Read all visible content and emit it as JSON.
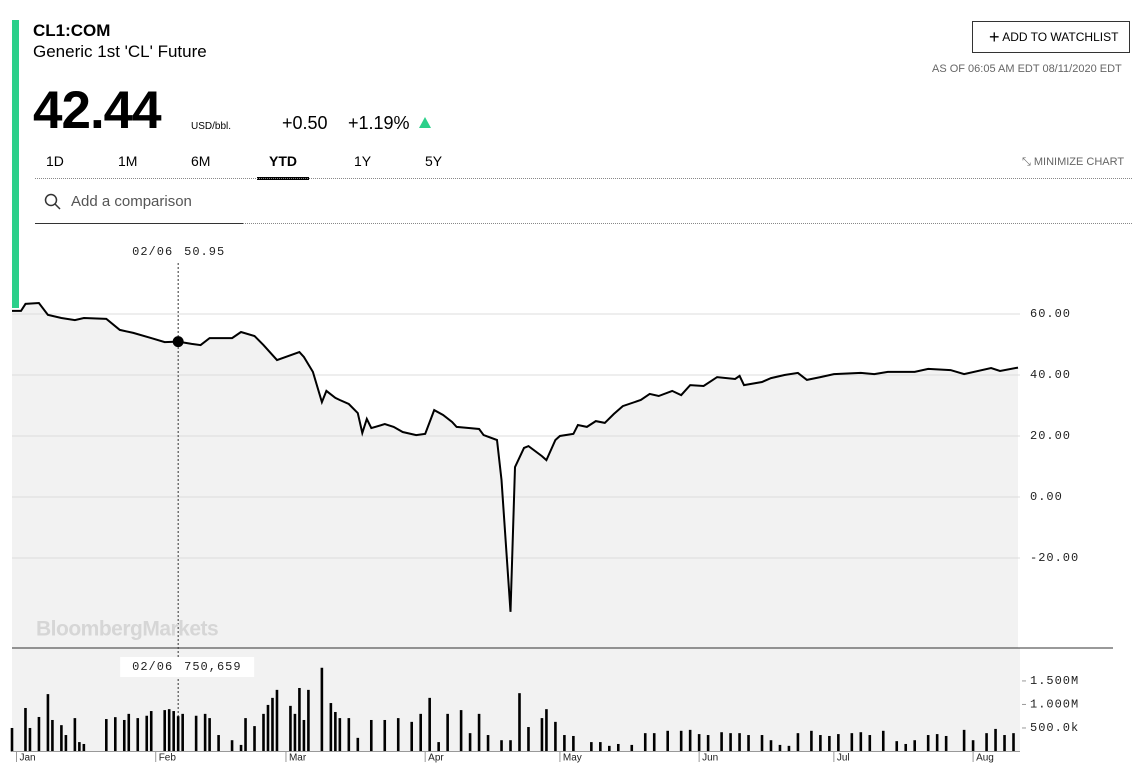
{
  "header": {
    "symbol": "CL1:COM",
    "name": "Generic 1st 'CL' Future",
    "price": "42.44",
    "unit": "USD/bbl.",
    "change": "+0.50",
    "change_pct": "+1.19%",
    "watchlist": "ADD TO WATCHLIST",
    "as_of": "AS OF 06:05 AM EDT 08/11/2020 EDT",
    "tabs": [
      "1D",
      "1M",
      "6M",
      "YTD",
      "1Y",
      "5Y"
    ],
    "active_tab": 3,
    "minimize": "MINIMIZE CHART",
    "comparison": "Add a comparison",
    "watermark": "BloombergMarkets"
  },
  "chart_data": [
    {
      "type": "line",
      "color": "#000000",
      "area_color": "#f2f2f2",
      "grid": true,
      "x": [
        0,
        2,
        3,
        6,
        8,
        11,
        14,
        16,
        21,
        24,
        27,
        31,
        34,
        37,
        40,
        42,
        44,
        49,
        51,
        54,
        56,
        59,
        64,
        65,
        67,
        69,
        70,
        72,
        73,
        75,
        77,
        78,
        79,
        80,
        83,
        85,
        87,
        90,
        92,
        94,
        96,
        98,
        99,
        102,
        104,
        105,
        108,
        109,
        111,
        112,
        114,
        115,
        118,
        119,
        121,
        122,
        125,
        126,
        128,
        130,
        132,
        134,
        136,
        140,
        142,
        144,
        147,
        149,
        151,
        154,
        157,
        161,
        162,
        163,
        167,
        169,
        172,
        175,
        177,
        180,
        183,
        189,
        192,
        195,
        201,
        204,
        209,
        212,
        218,
        220,
        224
      ],
      "values": [
        61.0,
        61.0,
        63.3,
        63.6,
        59.7,
        58.7,
        58.0,
        58.7,
        58.4,
        54.8,
        53.8,
        52.1,
        50.8,
        50.95,
        50.2,
        49.8,
        52.1,
        52.1,
        54.1,
        52.8,
        49.8,
        44.9,
        47.5,
        45.9,
        41.0,
        31.1,
        34.8,
        32.5,
        31.8,
        30.5,
        27.5,
        21.0,
        25.6,
        22.6,
        23.9,
        23.0,
        21.3,
        20.3,
        20.7,
        28.5,
        26.9,
        24.6,
        23.0,
        22.6,
        22.3,
        20.3,
        18.7,
        5.6,
        -37.63,
        9.8,
        16.1,
        16.7,
        13.4,
        12.1,
        18.7,
        20.0,
        20.7,
        23.6,
        23.0,
        24.9,
        24.3,
        27.2,
        29.8,
        31.8,
        33.8,
        33.1,
        34.8,
        33.4,
        36.7,
        36.4,
        39.3,
        38.7,
        39.7,
        36.7,
        37.7,
        39.0,
        40.0,
        40.7,
        38.4,
        39.3,
        40.3,
        40.7,
        40.3,
        41.0,
        41.0,
        42.0,
        41.6,
        40.3,
        42.3,
        41.3,
        42.44
      ],
      "xlim": [
        0,
        224
      ],
      "ylim": [
        -50,
        88
      ],
      "yticks": [
        {
          "value": 60,
          "label": "60.00"
        },
        {
          "value": 40,
          "label": "40.00"
        },
        {
          "value": 20,
          "label": "20.00"
        },
        {
          "value": 0,
          "label": "0.00"
        },
        {
          "value": -20,
          "label": "-20.00"
        }
      ],
      "crosshair": {
        "x": 37,
        "x_label": "02/06",
        "price": 50.95
      }
    },
    {
      "type": "bar",
      "color": "#000000",
      "x": [
        0,
        3,
        4,
        6,
        8,
        9,
        11,
        12,
        14,
        15,
        16,
        21,
        23,
        25,
        26,
        28,
        30,
        31,
        34,
        35,
        36,
        37,
        38,
        41,
        43,
        44,
        46,
        49,
        51,
        52,
        54,
        56,
        57,
        58,
        59,
        62,
        63,
        64,
        65,
        66,
        69,
        71,
        72,
        73,
        75,
        77,
        80,
        83,
        86,
        89,
        91,
        93,
        95,
        97,
        100,
        102,
        104,
        106,
        109,
        111,
        113,
        115,
        118,
        119,
        121,
        123,
        125,
        129,
        131,
        133,
        135,
        138,
        141,
        143,
        146,
        149,
        151,
        153,
        155,
        158,
        160,
        162,
        164,
        167,
        169,
        171,
        173,
        175,
        178,
        180,
        182,
        184,
        187,
        189,
        191,
        194,
        197,
        199,
        201,
        204,
        206,
        208,
        212,
        214,
        217,
        219,
        221,
        223
      ],
      "values": [
        500000,
        925000,
        500000,
        734000,
        1220000,
        670000,
        560000,
        350000,
        710000,
        200000,
        160000,
        690000,
        730000,
        670000,
        800000,
        710000,
        760000,
        860000,
        880000,
        900000,
        860000,
        750659,
        800000,
        760000,
        800000,
        710000,
        350000,
        240000,
        140000,
        710000,
        540000,
        800000,
        990000,
        1140000,
        1310000,
        970000,
        800000,
        1350000,
        670000,
        1310000,
        1780000,
        1030000,
        840000,
        710000,
        710000,
        290000,
        670000,
        670000,
        710000,
        630000,
        800000,
        1140000,
        200000,
        800000,
        880000,
        390000,
        800000,
        350000,
        240000,
        240000,
        1240000,
        520000,
        710000,
        900000,
        630000,
        350000,
        330000,
        200000,
        200000,
        120000,
        160000,
        140000,
        390000,
        390000,
        440000,
        440000,
        460000,
        370000,
        350000,
        410000,
        390000,
        390000,
        350000,
        350000,
        240000,
        140000,
        120000,
        390000,
        440000,
        350000,
        330000,
        370000,
        390000,
        410000,
        350000,
        440000,
        220000,
        160000,
        240000,
        350000,
        370000,
        330000,
        460000,
        240000,
        390000,
        480000,
        350000,
        390000
      ],
      "xlim": [
        0,
        224
      ],
      "ylim": [
        0,
        2200000
      ],
      "yticks": [
        {
          "value": 1500000,
          "label": "1.500M"
        },
        {
          "value": 1000000,
          "label": "1.000M"
        },
        {
          "value": 500000,
          "label": "500.0k"
        }
      ],
      "xticks": [
        {
          "value": 1,
          "label": "Jan"
        },
        {
          "value": 32,
          "label": "Feb"
        },
        {
          "value": 61,
          "label": "Mar"
        },
        {
          "value": 92,
          "label": "Apr"
        },
        {
          "value": 122,
          "label": "May"
        },
        {
          "value": 153,
          "label": "Jun"
        },
        {
          "value": 183,
          "label": "Jul"
        },
        {
          "value": 214,
          "label": "Aug"
        }
      ],
      "crosshair": {
        "x": 37,
        "x_label": "02/06",
        "volume": 750659,
        "volume_label": "750,659"
      }
    }
  ]
}
